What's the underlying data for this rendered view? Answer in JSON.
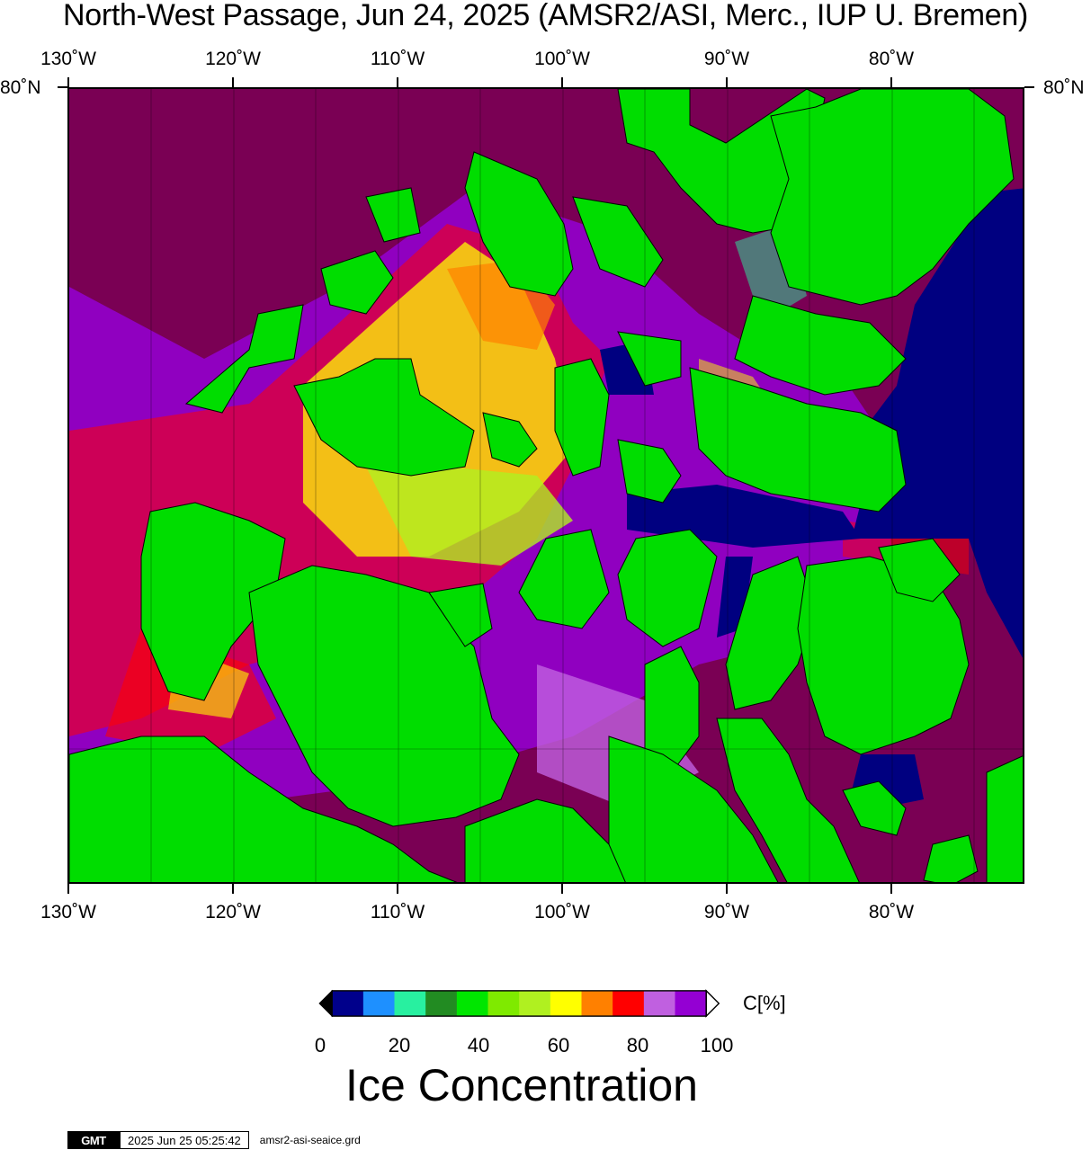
{
  "title": "North-West Passage, Jun 24, 2025 (AMSR2/ASI, Merc., IUP U. Bremen)",
  "map": {
    "lon_ticks_top": [
      "130˚W",
      "120˚W",
      "110˚W",
      "100˚W",
      "90˚W",
      "80˚W"
    ],
    "lon_ticks_bottom": [
      "130˚W",
      "120˚W",
      "110˚W",
      "100˚W",
      "90˚W",
      "80˚W"
    ],
    "lat_left": "80˚N",
    "lat_right": "80˚N",
    "land_color": "#00dd00",
    "open_water_color": "#000080",
    "full_ice_color": "#7a0054"
  },
  "colorbar": {
    "colors": [
      "#00008b",
      "#1e90ff",
      "#28f0a0",
      "#228b22",
      "#00e600",
      "#7fea00",
      "#b0f020",
      "#ffff00",
      "#ff8000",
      "#ff0000",
      "#c060e0",
      "#9400d3"
    ],
    "labels": [
      "0",
      "20",
      "40",
      "60",
      "80",
      "100"
    ],
    "unit": "C[%]",
    "title": "Ice Concentration"
  },
  "footer": {
    "logo": "GMT",
    "timestamp": "2025 Jun 25 05:25:42",
    "file": "amsr2-asi-seaice.grd"
  }
}
